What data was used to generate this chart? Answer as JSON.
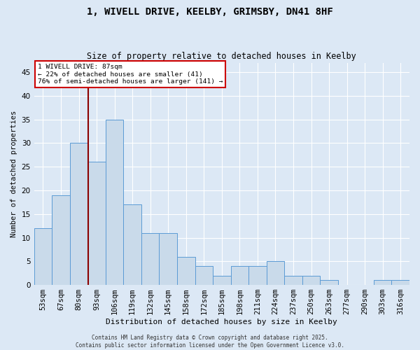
{
  "title": "1, WIVELL DRIVE, KEELBY, GRIMSBY, DN41 8HF",
  "subtitle": "Size of property relative to detached houses in Keelby",
  "xlabel": "Distribution of detached houses by size in Keelby",
  "ylabel": "Number of detached properties",
  "bar_labels": [
    "53sqm",
    "67sqm",
    "80sqm",
    "93sqm",
    "106sqm",
    "119sqm",
    "132sqm",
    "145sqm",
    "158sqm",
    "172sqm",
    "185sqm",
    "198sqm",
    "211sqm",
    "224sqm",
    "237sqm",
    "250sqm",
    "263sqm",
    "277sqm",
    "290sqm",
    "303sqm",
    "316sqm"
  ],
  "bar_values": [
    12,
    19,
    30,
    26,
    35,
    17,
    11,
    11,
    6,
    4,
    2,
    4,
    4,
    5,
    2,
    2,
    1,
    0,
    0,
    1,
    1
  ],
  "bar_color": "#c9daea",
  "bar_edge_color": "#5b9bd5",
  "background_color": "#dce8f5",
  "grid_color": "#ffffff",
  "vline_color": "#8b0000",
  "annotation_text": "1 WIVELL DRIVE: 87sqm\n← 22% of detached houses are smaller (41)\n76% of semi-detached houses are larger (141) →",
  "annotation_box_color": "#ffffff",
  "annotation_box_edge": "#cc0000",
  "ylim": [
    0,
    47
  ],
  "yticks": [
    0,
    5,
    10,
    15,
    20,
    25,
    30,
    35,
    40,
    45
  ],
  "footer": "Contains HM Land Registry data © Crown copyright and database right 2025.\nContains public sector information licensed under the Open Government Licence v3.0."
}
